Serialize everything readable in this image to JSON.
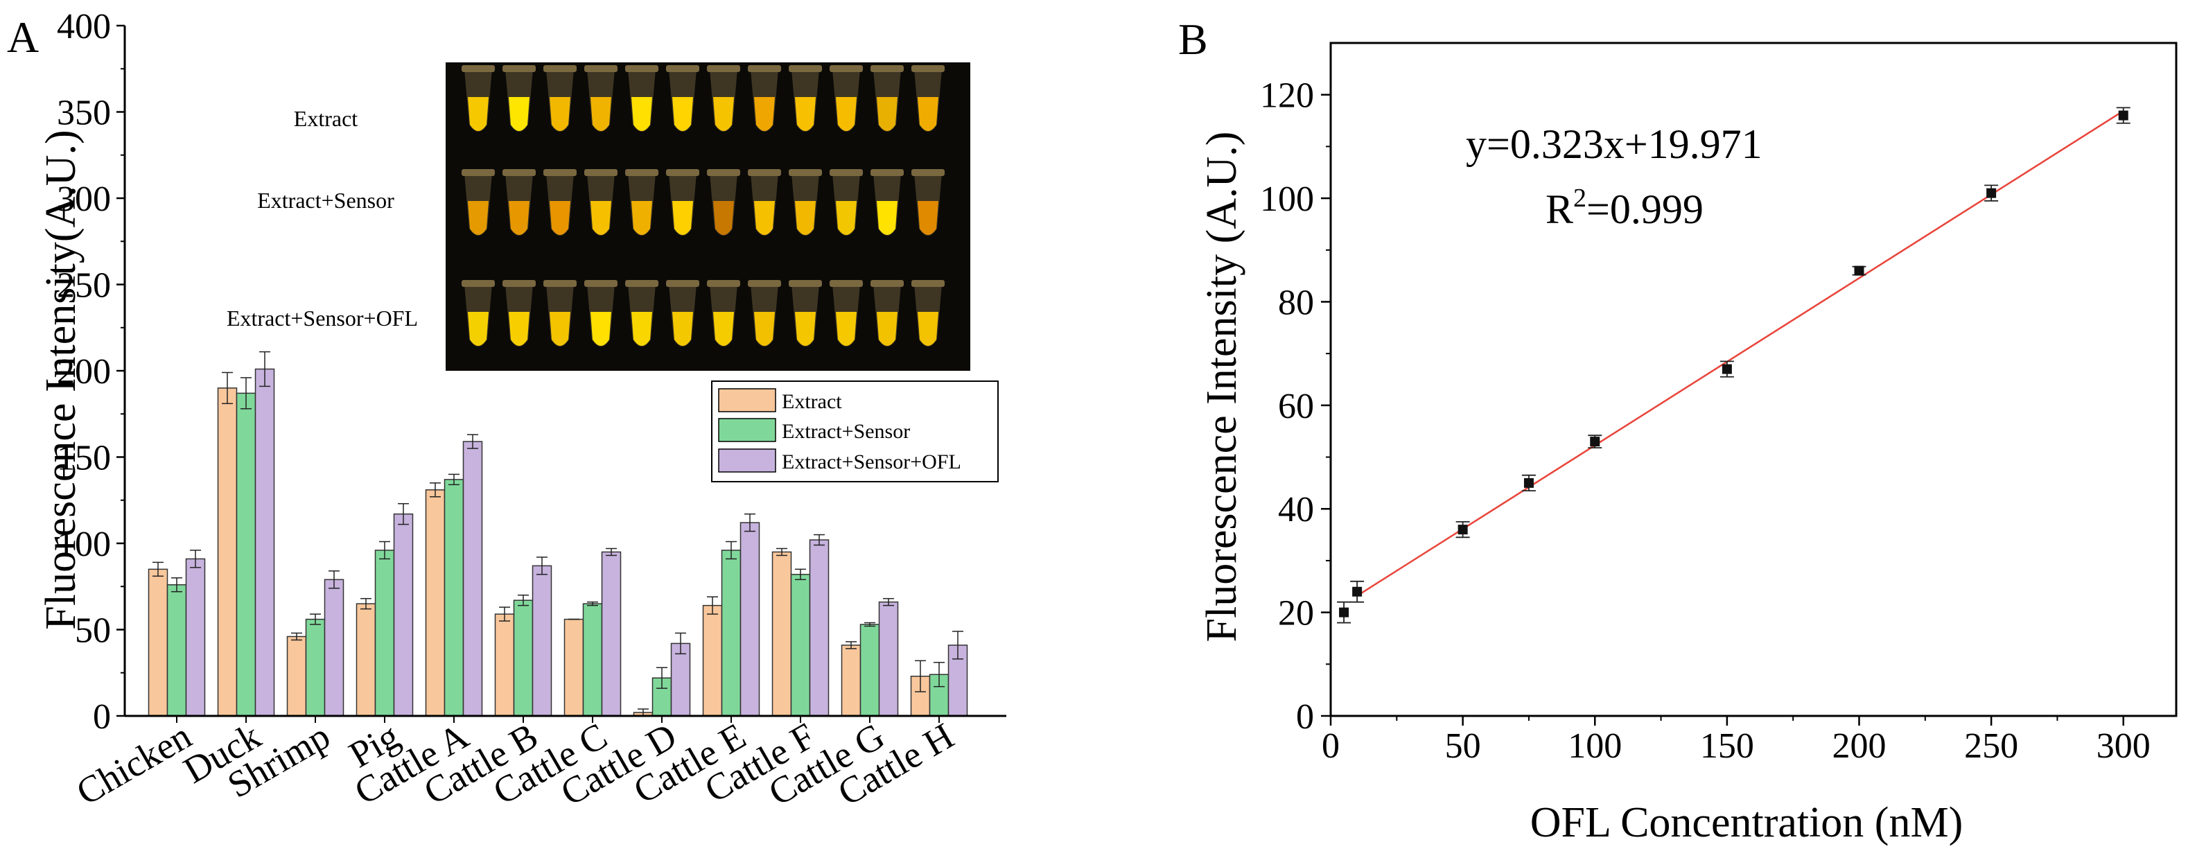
{
  "panels": {
    "a_letter": "A",
    "b_letter": "B"
  },
  "photo": {
    "row_labels": [
      "Extract",
      "Extract+Sensor",
      "Extract+Sensor+OFL"
    ],
    "rows": [
      [
        "#f6c800",
        "#ffe600",
        "#f2b800",
        "#f0b300",
        "#ffe000",
        "#ffd400",
        "#f5c300",
        "#f0a600",
        "#f7c000",
        "#f6bd00",
        "#e8b000",
        "#f0ad00"
      ],
      [
        "#e49a00",
        "#e79800",
        "#e89500",
        "#f6c000",
        "#f0b000",
        "#ffd000",
        "#c77800",
        "#f5c000",
        "#f2b800",
        "#f2c600",
        "#ffe200",
        "#e08a00"
      ],
      [
        "#f5d000",
        "#f7cf00",
        "#f4c400",
        "#ffe000",
        "#f9d600",
        "#f4c800",
        "#f5cc00",
        "#f2c000",
        "#f4c600",
        "#f5c800",
        "#f2c200",
        "#f3c200"
      ]
    ]
  },
  "chart_data": [
    {
      "type": "bar",
      "panel": "A",
      "ylabel": "Fluorescence Intensity(A.U.)",
      "ylim": [
        0,
        400
      ],
      "yticks": [
        0,
        50,
        100,
        150,
        200,
        250,
        300,
        350,
        400
      ],
      "categories": [
        "Chicken",
        "Duck",
        "Shrimp",
        "Pig",
        "Cattle A",
        "Cattle B",
        "Cattle C",
        "Cattle D",
        "Cattle E",
        "Cattle F",
        "Cattle G",
        "Cattle H"
      ],
      "series": [
        {
          "name": "Extract",
          "color": "#f9c79c",
          "values": [
            85,
            190,
            46,
            65,
            131,
            59,
            56,
            2,
            64,
            95,
            41,
            23
          ],
          "errors": [
            4,
            9,
            2,
            3,
            4,
            4,
            0,
            2,
            5,
            2,
            2,
            9
          ]
        },
        {
          "name": "Extract+Sensor",
          "color": "#7fd89a",
          "values": [
            76,
            187,
            56,
            96,
            137,
            67,
            65,
            22,
            96,
            82,
            53,
            24
          ],
          "errors": [
            4,
            9,
            3,
            5,
            3,
            3,
            1,
            6,
            5,
            3,
            1,
            7
          ]
        },
        {
          "name": "Extract+Sensor+OFL",
          "color": "#c7b3de",
          "values": [
            91,
            201,
            79,
            117,
            159,
            87,
            95,
            42,
            112,
            102,
            66,
            41
          ],
          "errors": [
            5,
            10,
            5,
            6,
            4,
            5,
            2,
            6,
            5,
            3,
            2,
            8
          ]
        }
      ],
      "legend": [
        "Extract",
        "Extract+Sensor",
        "Extract+Sensor+OFL"
      ]
    },
    {
      "type": "scatter",
      "panel": "B",
      "xlabel": "OFL Concentration (nM)",
      "ylabel": "Fluorescence Intensity (A.U.)",
      "xlim": [
        0,
        320
      ],
      "ylim": [
        0,
        130
      ],
      "xticks": [
        0,
        50,
        100,
        150,
        200,
        250,
        300
      ],
      "yticks": [
        0,
        20,
        40,
        60,
        80,
        100,
        120
      ],
      "points": [
        {
          "x": 5,
          "y": 20,
          "err": 2
        },
        {
          "x": 10,
          "y": 24,
          "err": 2
        },
        {
          "x": 50,
          "y": 36,
          "err": 1.5
        },
        {
          "x": 75,
          "y": 45,
          "err": 1.5
        },
        {
          "x": 100,
          "y": 53,
          "err": 1.2
        },
        {
          "x": 150,
          "y": 67,
          "err": 1.5
        },
        {
          "x": 200,
          "y": 86,
          "err": 0.8
        },
        {
          "x": 250,
          "y": 101,
          "err": 1.5
        },
        {
          "x": 300,
          "y": 116,
          "err": 1.5
        }
      ],
      "fit": {
        "slope": 0.323,
        "intercept": 19.971,
        "x_range": [
          10,
          300
        ],
        "color": "#e8443a"
      },
      "equation": "y=0.323x+19.971",
      "r2_prefix": "R",
      "r2_sup": "2",
      "r2_value": "=0.999"
    }
  ]
}
